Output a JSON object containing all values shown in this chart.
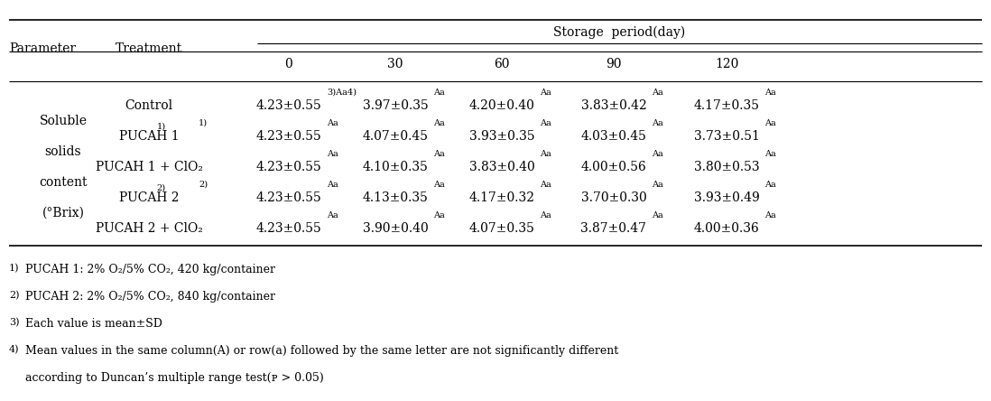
{
  "param_label": [
    "Soluble",
    "solids",
    "content",
    "(°Brix)"
  ],
  "treatments": [
    "Control",
    "PUCAH 1",
    "PUCAH 1 + ClO₂",
    "PUCAH 2",
    "PUCAH 2 + ClO₂"
  ],
  "treatment_sups": [
    "",
    "1)",
    "",
    "2)",
    ""
  ],
  "period_labels": [
    "0",
    "30",
    "60",
    "90",
    "120"
  ],
  "data_base": [
    [
      "4.23±0.55",
      "3.97±0.35",
      "4.20±0.40",
      "3.83±0.42",
      "4.17±0.35"
    ],
    [
      "4.23±0.55",
      "4.07±0.45",
      "3.93±0.35",
      "4.03±0.45",
      "3.73±0.51"
    ],
    [
      "4.23±0.55",
      "4.10±0.35",
      "3.83±0.40",
      "4.00±0.56",
      "3.80±0.53"
    ],
    [
      "4.23±0.55",
      "4.13±0.35",
      "4.17±0.32",
      "3.70±0.30",
      "3.93±0.49"
    ],
    [
      "4.23±0.55",
      "3.90±0.40",
      "4.07±0.35",
      "3.87±0.47",
      "4.00±0.36"
    ]
  ],
  "data_sup": [
    [
      "3)Aa4)",
      "Aa",
      "Aa",
      "Aa",
      "Aa"
    ],
    [
      "Aa",
      "Aa",
      "Aa",
      "Aa",
      "Aa"
    ],
    [
      "Aa",
      "Aa",
      "Aa",
      "Aa",
      "Aa"
    ],
    [
      "Aa",
      "Aa",
      "Aa",
      "Aa",
      "Aa"
    ],
    [
      "Aa",
      "Aa",
      "Aa",
      "Aa",
      "Aa"
    ]
  ],
  "footnotes": [
    [
      "1)",
      "PUCAH 1: 2% O₂/5% CO₂, 420 kg/container"
    ],
    [
      "2)",
      "PUCAH 2: 2% O₂/5% CO₂, 840 kg/container"
    ],
    [
      "3)",
      "Each value is mean±SD"
    ],
    [
      "4)",
      "Mean values in the same column(A) or row(a) followed by the same letter are not significantly different"
    ],
    [
      "",
      "according to Duncan’s multiple range test(ᴘ > 0.05)"
    ]
  ],
  "storage_label": "Storage  period(day)",
  "param_header": "Parameter",
  "treatment_header": "Treatment",
  "bg_color": "white",
  "text_color": "black"
}
